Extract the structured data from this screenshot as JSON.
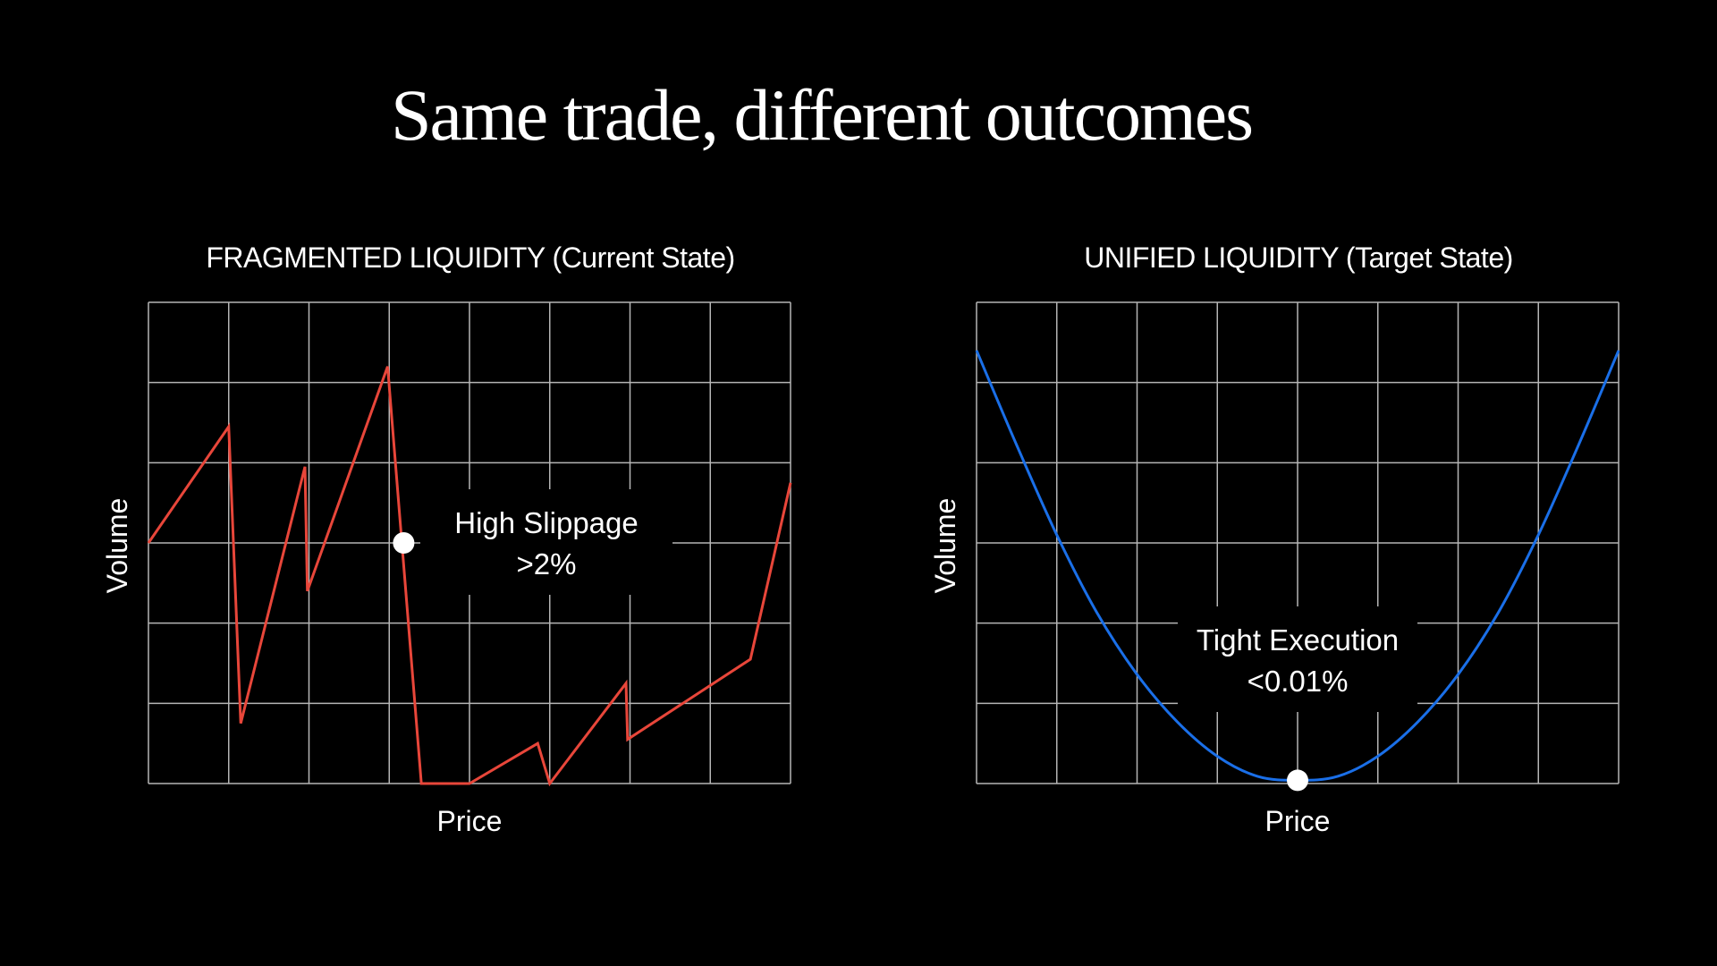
{
  "title": "Same trade, different outcomes",
  "chart_data": [
    {
      "type": "line",
      "title": "FRAGMENTED LIQUIDITY (Current State)",
      "xlabel": "Price",
      "ylabel": "Volume",
      "xlim": [
        0,
        8
      ],
      "ylim": [
        0,
        6
      ],
      "grid": true,
      "line_color": "#e8463a",
      "x": [
        0,
        1.0,
        1.15,
        1.95,
        1.98,
        2.98,
        3.4,
        4.0,
        4.85,
        5.0,
        5.95,
        5.97,
        7.5,
        8.0
      ],
      "y": [
        3.0,
        4.45,
        0.75,
        3.95,
        2.4,
        5.2,
        0.0,
        0.0,
        0.5,
        0.0,
        1.25,
        0.55,
        1.55,
        3.75
      ],
      "marker": {
        "x": 3.18,
        "y": 3.0
      },
      "annotation": {
        "lines": [
          "High Slippage",
          ">2%"
        ]
      }
    },
    {
      "type": "line",
      "title": "UNIFIED LIQUIDITY (Target State)",
      "xlabel": "Price",
      "ylabel": "Volume",
      "xlim": [
        0,
        8
      ],
      "ylim": [
        0,
        6
      ],
      "grid": true,
      "line_color": "#1a6fe8",
      "x": [
        0,
        0.5,
        1.0,
        1.5,
        2.0,
        2.5,
        3.0,
        3.5,
        4.0,
        4.5,
        5.0,
        5.5,
        6.0,
        6.5,
        7.0,
        7.5,
        8.0
      ],
      "y": [
        5.4,
        4.22,
        3.1,
        2.13,
        1.36,
        0.77,
        0.34,
        0.09,
        0.04,
        0.09,
        0.34,
        0.77,
        1.36,
        2.13,
        3.1,
        4.22,
        5.4
      ],
      "marker": {
        "x": 4.0,
        "y": 0.04
      },
      "annotation": {
        "lines": [
          "Tight Execution",
          "<0.01%"
        ]
      }
    }
  ]
}
